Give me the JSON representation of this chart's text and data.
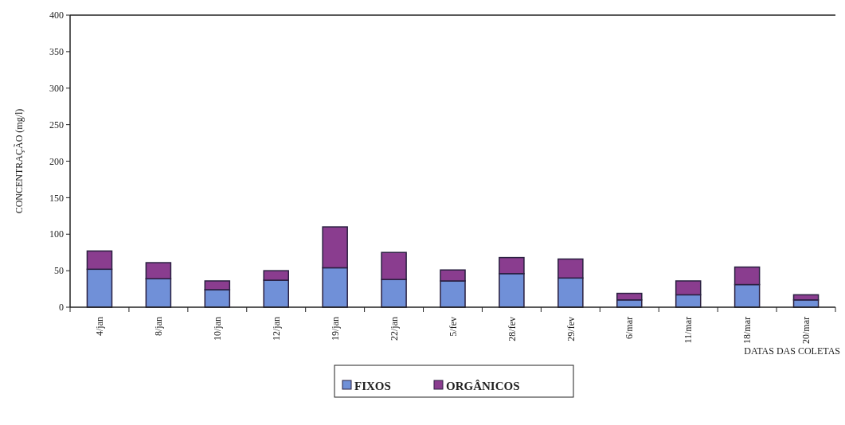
{
  "chart_data": {
    "type": "bar",
    "stacked": true,
    "ylabel": "CONCENTRAÇÃO (mg/l)",
    "xlabel": "DATAS DAS COLETAS",
    "categories": [
      "4/jan",
      "8/jan",
      "10/jan",
      "12/jan",
      "19/jan",
      "22/jan",
      "5/fev",
      "28/fev",
      "29/fev",
      "6/mar",
      "11/mar",
      "18/mar",
      "20/mar"
    ],
    "series": [
      {
        "name": "FIXOS",
        "color": "#7090d8",
        "values": [
          52,
          39,
          24,
          37,
          54,
          38,
          36,
          46,
          40,
          10,
          17,
          31,
          10
        ]
      },
      {
        "name": "ORGÂNICOS",
        "color": "#8a3d8f",
        "values": [
          25,
          22,
          12,
          13,
          56,
          37,
          15,
          22,
          26,
          9,
          19,
          24,
          7
        ]
      }
    ],
    "ylim": [
      0,
      400
    ],
    "yticks": [
      0,
      50,
      100,
      150,
      200,
      250,
      300,
      350,
      400
    ],
    "grid": false,
    "legend": "bottom"
  }
}
